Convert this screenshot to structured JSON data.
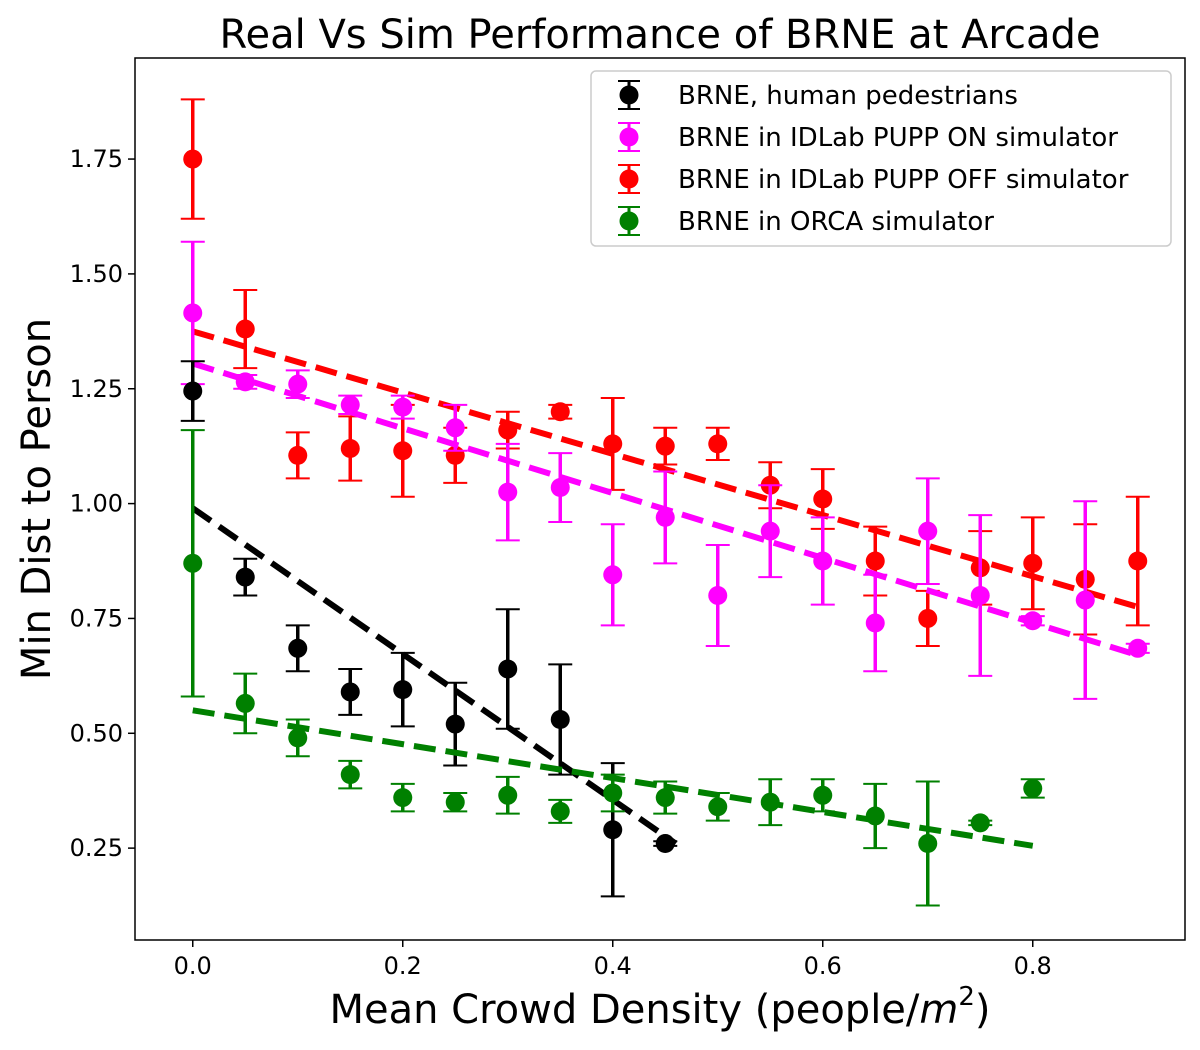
{
  "chart_data": {
    "type": "scatter",
    "title": "Real Vs Sim Performance of BRNE at Arcade",
    "xlabel_main": "Mean Crowd Density (people/",
    "xlabel_sup_base": "m",
    "xlabel_sup": "2",
    "xlabel_close": ")",
    "ylabel": "Min Dist to Person",
    "xlim": [
      -0.055,
      0.945
    ],
    "ylim": [
      0.05,
      1.97
    ],
    "x_ticks": [
      0.0,
      0.2,
      0.4,
      0.6,
      0.8
    ],
    "x_tick_labels": [
      "0.0",
      "0.2",
      "0.4",
      "0.6",
      "0.8"
    ],
    "y_ticks": [
      0.25,
      0.5,
      0.75,
      1.0,
      1.25,
      1.5,
      1.75
    ],
    "y_tick_labels": [
      "0.25",
      "0.50",
      "0.75",
      "1.00",
      "1.25",
      "1.50",
      "1.75"
    ],
    "grid": false,
    "legend_position": "top-right",
    "series": [
      {
        "name": "BRNE in IDLab PUPP OFF simulator",
        "color": "#ff0000",
        "x": [
          0.0,
          0.05,
          0.1,
          0.15,
          0.2,
          0.25,
          0.3,
          0.35,
          0.4,
          0.45,
          0.5,
          0.55,
          0.6,
          0.65,
          0.7,
          0.75,
          0.8,
          0.85,
          0.9
        ],
        "y": [
          1.75,
          1.38,
          1.105,
          1.12,
          1.115,
          1.105,
          1.16,
          1.2,
          1.13,
          1.125,
          1.13,
          1.04,
          1.01,
          0.875,
          0.75,
          0.86,
          0.87,
          0.835,
          0.875
        ],
        "err": [
          0.13,
          0.085,
          0.05,
          0.07,
          0.1,
          0.06,
          0.04,
          0.015,
          0.1,
          0.04,
          0.035,
          0.05,
          0.065,
          0.075,
          0.06,
          0.08,
          0.1,
          0.12,
          0.14
        ],
        "trend": {
          "x0": 0.0,
          "y0": 1.375,
          "x1": 0.9,
          "y1": 0.775
        }
      },
      {
        "name": "BRNE in IDLab PUPP ON simulator",
        "color": "#ff00ff",
        "x": [
          0.0,
          0.05,
          0.1,
          0.15,
          0.2,
          0.25,
          0.3,
          0.35,
          0.4,
          0.45,
          0.5,
          0.55,
          0.6,
          0.65,
          0.7,
          0.75,
          0.8,
          0.85,
          0.9
        ],
        "y": [
          1.415,
          1.265,
          1.26,
          1.215,
          1.21,
          1.165,
          1.025,
          1.035,
          0.845,
          0.97,
          0.8,
          0.94,
          0.875,
          0.74,
          0.94,
          0.8,
          0.745,
          0.79,
          0.685
        ],
        "err": [
          0.155,
          0.015,
          0.03,
          0.02,
          0.025,
          0.05,
          0.105,
          0.075,
          0.11,
          0.1,
          0.11,
          0.1,
          0.095,
          0.105,
          0.115,
          0.175,
          0.01,
          0.215,
          0.01
        ],
        "trend": {
          "x0": 0.0,
          "y0": 1.305,
          "x1": 0.9,
          "y1": 0.67
        }
      },
      {
        "name": "BRNE, human pedestrians",
        "color": "#000000",
        "x": [
          0.0,
          0.05,
          0.1,
          0.15,
          0.2,
          0.25,
          0.3,
          0.35,
          0.4,
          0.45
        ],
        "y": [
          1.245,
          0.84,
          0.685,
          0.59,
          0.595,
          0.52,
          0.64,
          0.53,
          0.29,
          0.26
        ],
        "err": [
          0.065,
          0.04,
          0.05,
          0.05,
          0.08,
          0.09,
          0.13,
          0.12,
          0.145,
          0.005
        ],
        "trend": {
          "x0": 0.0,
          "y0": 0.99,
          "x1": 0.46,
          "y1": 0.26
        }
      },
      {
        "name": "BRNE in ORCA simulator",
        "color": "#008000",
        "x": [
          0.0,
          0.05,
          0.1,
          0.15,
          0.2,
          0.25,
          0.3,
          0.35,
          0.4,
          0.45,
          0.5,
          0.55,
          0.6,
          0.65,
          0.7,
          0.75,
          0.8
        ],
        "y": [
          0.87,
          0.565,
          0.49,
          0.41,
          0.36,
          0.35,
          0.365,
          0.33,
          0.37,
          0.36,
          0.34,
          0.35,
          0.365,
          0.32,
          0.26,
          0.305,
          0.38
        ],
        "err": [
          0.29,
          0.065,
          0.04,
          0.03,
          0.03,
          0.02,
          0.04,
          0.025,
          0.04,
          0.035,
          0.03,
          0.05,
          0.035,
          0.07,
          0.135,
          0.005,
          0.02
        ],
        "trend": {
          "x0": 0.0,
          "y0": 0.55,
          "x1": 0.8,
          "y1": 0.255
        }
      }
    ],
    "legend_order": [
      2,
      1,
      0,
      3
    ]
  }
}
